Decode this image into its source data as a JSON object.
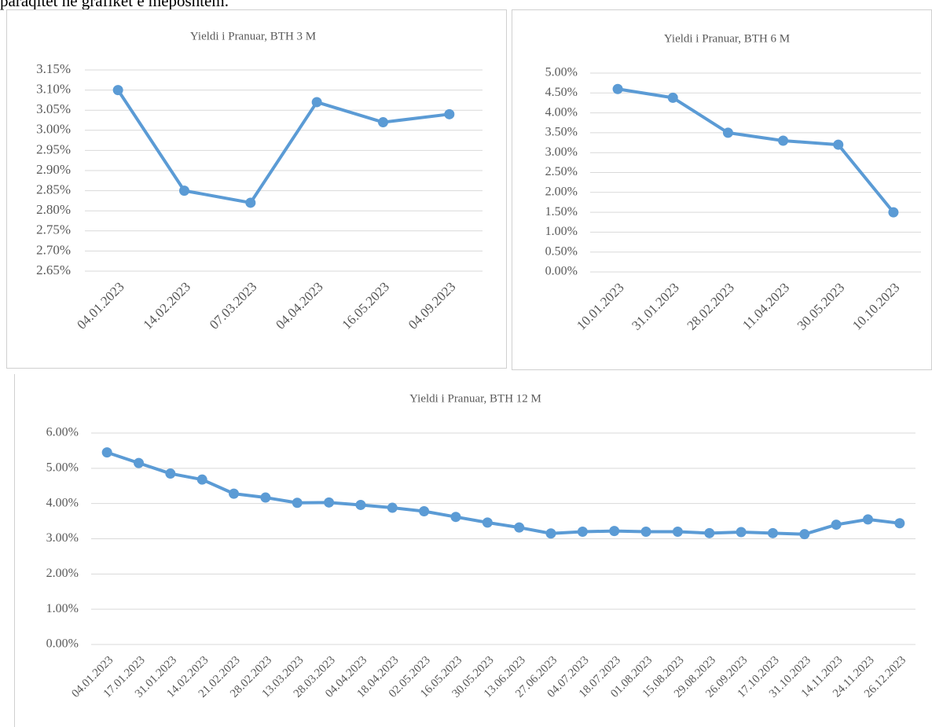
{
  "caption": "paraqitet në grafikët e mëposhtëm.",
  "chart_data": [
    {
      "type": "line",
      "title": "Yieldi i Pranuar, BTH 3 M",
      "categories": [
        "04.01.2023",
        "14.02.2023",
        "07.03.2023",
        "04.04.2023",
        "16.05.2023",
        "04.09.2023"
      ],
      "values": [
        3.1,
        2.85,
        2.82,
        3.07,
        3.02,
        3.04
      ],
      "color": "#5b9bd5",
      "ylim": [
        2.65,
        3.15
      ],
      "yticks": [
        {
          "value": 2.65,
          "label": "2.65%"
        },
        {
          "value": 2.7,
          "label": "2.70%"
        },
        {
          "value": 2.75,
          "label": "2.75%"
        },
        {
          "value": 2.8,
          "label": "2.80%"
        },
        {
          "value": 2.85,
          "label": "2.85%"
        },
        {
          "value": 2.9,
          "label": "2.90%"
        },
        {
          "value": 2.95,
          "label": "2.95%"
        },
        {
          "value": 3.0,
          "label": "3.00%"
        },
        {
          "value": 3.05,
          "label": "3.05%"
        },
        {
          "value": 3.1,
          "label": "3.10%"
        },
        {
          "value": 3.15,
          "label": "3.15%"
        }
      ],
      "grid": true
    },
    {
      "type": "line",
      "title": "Yieldi i Pranuar, BTH 6 M",
      "categories": [
        "10.01.2023",
        "31.01.2023",
        "28.02.2023",
        "11.04.2023",
        "30.05.2023",
        "10.10.2023"
      ],
      "values": [
        4.6,
        4.38,
        3.5,
        3.3,
        3.2,
        1.5
      ],
      "color": "#5b9bd5",
      "ylim": [
        0,
        5
      ],
      "yticks": [
        {
          "value": 0,
          "label": "0.00%"
        },
        {
          "value": 0.5,
          "label": "0.50%"
        },
        {
          "value": 1,
          "label": "1.00%"
        },
        {
          "value": 1.5,
          "label": "1.50%"
        },
        {
          "value": 2,
          "label": "2.00%"
        },
        {
          "value": 2.5,
          "label": "2.50%"
        },
        {
          "value": 3,
          "label": "3.00%"
        },
        {
          "value": 3.5,
          "label": "3.50%"
        },
        {
          "value": 4,
          "label": "4.00%"
        },
        {
          "value": 4.5,
          "label": "4.50%"
        },
        {
          "value": 5,
          "label": "5.00%"
        }
      ],
      "grid": true
    },
    {
      "type": "line",
      "title": "Yieldi i Pranuar, BTH 12 M",
      "categories": [
        "04.01.2023",
        "17.01.2023",
        "31.01.2023",
        "14.02.2023",
        "21.02.2023",
        "28.02.2023",
        "13.03.2023",
        "28.03.2023",
        "04.04.2023",
        "18.04.2023",
        "02.05.2023",
        "16.05.2023",
        "30.05.2023",
        "13.06.2023",
        "27.06.2023",
        "04.07.2023",
        "18.07.2023",
        "01.08.2023",
        "15.08.2023",
        "29.08.2023",
        "26.09.2023",
        "17.10.2023",
        "31.10.2023",
        "14.11.2023",
        "24.11.2023",
        "26.12.2023"
      ],
      "values": [
        5.45,
        5.15,
        4.85,
        4.68,
        4.28,
        4.17,
        4.02,
        4.03,
        3.96,
        3.88,
        3.78,
        3.62,
        3.46,
        3.32,
        3.15,
        3.2,
        3.22,
        3.2,
        3.2,
        3.16,
        3.19,
        3.16,
        3.13,
        3.4,
        3.55,
        3.44
      ],
      "color": "#5b9bd5",
      "ylim": [
        0,
        6
      ],
      "yticks": [
        {
          "value": 0,
          "label": "0.00%"
        },
        {
          "value": 1,
          "label": "1.00%"
        },
        {
          "value": 2,
          "label": "2.00%"
        },
        {
          "value": 3,
          "label": "3.00%"
        },
        {
          "value": 4,
          "label": "4.00%"
        },
        {
          "value": 5,
          "label": "5.00%"
        },
        {
          "value": 6,
          "label": "6.00%"
        }
      ],
      "grid": true
    }
  ]
}
